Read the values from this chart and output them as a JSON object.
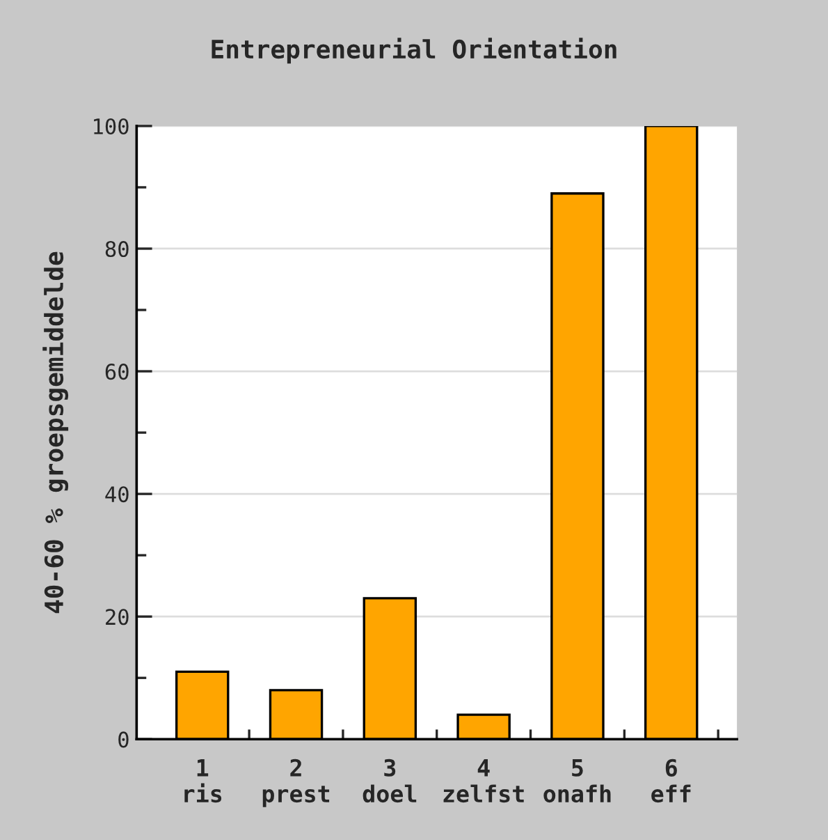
{
  "chart_data": {
    "type": "bar",
    "title": "Entrepreneurial Orientation",
    "ylabel": "40-60 % groepsgemiddelde",
    "categories": [
      "1\nris",
      "2\nprest",
      "3\ndoel",
      "4\nzelfst",
      "5\nonafh",
      "6\neff"
    ],
    "values": [
      11,
      8,
      23,
      4,
      89,
      100
    ],
    "color": "#ffa500",
    "ylim": [
      0,
      100
    ],
    "yticks": [
      0,
      {
        "value": 10,
        "label": null
      },
      20,
      {
        "value": 30,
        "label": null
      },
      40,
      {
        "value": 50,
        "label": null
      },
      60,
      {
        "value": 70,
        "label": null
      },
      80,
      {
        "value": 90,
        "label": null
      },
      100
    ],
    "grid": "y"
  }
}
